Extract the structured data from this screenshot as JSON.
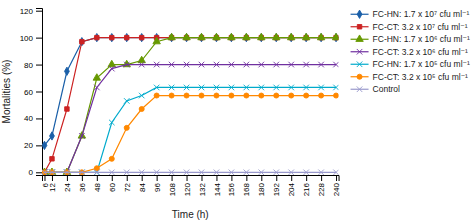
{
  "chart_data": {
    "type": "line",
    "xlabel": "Time (h)",
    "ylabel": "Mortalities (%)",
    "x": [
      6,
      12,
      24,
      36,
      48,
      60,
      72,
      84,
      96,
      108,
      120,
      132,
      144,
      156,
      168,
      180,
      192,
      204,
      216,
      228,
      240
    ],
    "series": [
      {
        "name": "FC-HN: 1.7 x 10⁷ cfu ml⁻¹",
        "color": "#1a5fa8",
        "marker": "diamond",
        "values": [
          20,
          27,
          75,
          97,
          100,
          100,
          100,
          100,
          100,
          100,
          100,
          100,
          100,
          100,
          100,
          100,
          100,
          100,
          100,
          100,
          100
        ]
      },
      {
        "name": "FC-CT: 3.2 x 10⁷ cfu ml⁻¹",
        "color": "#cc2222",
        "marker": "square",
        "values": [
          0,
          10,
          47,
          97,
          100,
          100,
          100,
          100,
          100,
          100,
          100,
          100,
          100,
          100,
          100,
          100,
          100,
          100,
          100,
          100,
          100
        ]
      },
      {
        "name": "FC-HN: 1.7 x 10⁶ cfu ml⁻¹",
        "color": "#669900",
        "marker": "triangle",
        "values": [
          0,
          0,
          0,
          27,
          70,
          80,
          80,
          83,
          97,
          100,
          100,
          100,
          100,
          100,
          100,
          100,
          100,
          100,
          100,
          100,
          100
        ]
      },
      {
        "name": "FC-CT: 3.2 x 10⁶ cfu ml⁻¹",
        "color": "#7030a0",
        "marker": "x",
        "values": [
          0,
          0,
          0,
          27,
          63,
          77,
          80,
          80,
          80,
          80,
          80,
          80,
          80,
          80,
          80,
          80,
          80,
          80,
          80,
          80,
          80
        ]
      },
      {
        "name": "FC-HN: 1.7 x 10⁵ cfu ml⁻¹",
        "color": "#00aacc",
        "marker": "x",
        "values": [
          0,
          0,
          0,
          0,
          0,
          37,
          53,
          57,
          63,
          63,
          63,
          63,
          63,
          63,
          63,
          63,
          63,
          63,
          63,
          63,
          63
        ]
      },
      {
        "name": "FC-CT: 3.2 x 10⁵ cfu ml⁻¹",
        "color": "#ff8800",
        "marker": "circle",
        "values": [
          0,
          0,
          0,
          0,
          3,
          10,
          33,
          47,
          57,
          57,
          57,
          57,
          57,
          57,
          57,
          57,
          57,
          57,
          57,
          57,
          57
        ]
      },
      {
        "name": "Control",
        "color": "#9999cc",
        "marker": "x",
        "values": [
          0,
          0,
          0,
          0,
          0,
          0,
          0,
          0,
          0,
          0,
          0,
          0,
          0,
          0,
          0,
          0,
          0,
          0,
          0,
          0,
          0
        ]
      }
    ],
    "xlim": [
      4,
      242
    ],
    "ylim": [
      -2,
      122
    ],
    "xticks": [
      6,
      12,
      24,
      36,
      48,
      60,
      72,
      84,
      96,
      108,
      120,
      132,
      144,
      156,
      168,
      180,
      192,
      204,
      216,
      228,
      240
    ],
    "yticks": [
      0,
      20,
      40,
      60,
      80,
      100,
      120
    ],
    "grid": false,
    "legend": "right"
  }
}
